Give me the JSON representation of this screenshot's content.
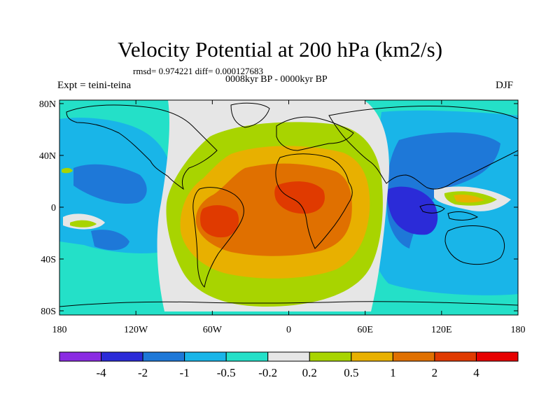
{
  "title": "Velocity Potential at 200 hPa (km2/s)",
  "stats": "rmsd= 0.974221 diff= 0.000127683",
  "period": "0008kyr BP - 0000kyr BP",
  "experiment": "Expt = teini-teina",
  "season": "DJF",
  "lat_axis": {
    "labels": [
      {
        "text": "80N",
        "lat": 80
      },
      {
        "text": "40N",
        "lat": 40
      },
      {
        "text": "0",
        "lat": 0
      },
      {
        "text": "40S",
        "lat": -40
      },
      {
        "text": "80S",
        "lat": -80
      }
    ]
  },
  "lon_axis": {
    "labels": [
      {
        "text": "180",
        "lon": -180
      },
      {
        "text": "120W",
        "lon": -120
      },
      {
        "text": "60W",
        "lon": -60
      },
      {
        "text": "0",
        "lon": 0
      },
      {
        "text": "60E",
        "lon": 60
      },
      {
        "text": "120E",
        "lon": 120
      },
      {
        "text": "180",
        "lon": 180
      }
    ]
  },
  "colorbar": {
    "colors": [
      "#8a2be2",
      "#2b2bd8",
      "#1e78d8",
      "#19b5e8",
      "#24e0c8",
      "#e6e6e6",
      "#a8d400",
      "#e8b000",
      "#e07000",
      "#e03a00",
      "#e60000"
    ],
    "labels": [
      "-4",
      "-2",
      "-1",
      "-0.5",
      "-0.2",
      "0.2",
      "0.5",
      "1",
      "2",
      "4"
    ]
  }
}
